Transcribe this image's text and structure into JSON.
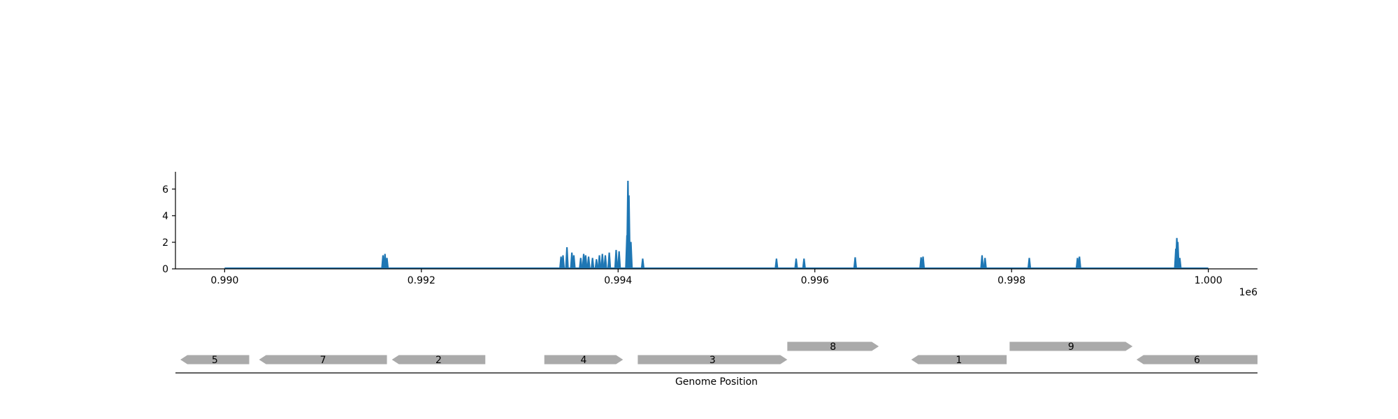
{
  "chart_data": [
    {
      "type": "line",
      "title": "",
      "xlabel": "",
      "ylabel": "",
      "x_offset_label": "1e6",
      "xlim": [
        989500,
        1000500
      ],
      "ylim": [
        0,
        7.3
      ],
      "x_ticks": [
        {
          "value": 990000,
          "label": "0.990"
        },
        {
          "value": 992000,
          "label": "0.992"
        },
        {
          "value": 994000,
          "label": "0.994"
        },
        {
          "value": 996000,
          "label": "0.996"
        },
        {
          "value": 998000,
          "label": "0.998"
        },
        {
          "value": 1000000,
          "label": "1.000"
        }
      ],
      "y_ticks": [
        {
          "value": 0,
          "label": "0"
        },
        {
          "value": 2,
          "label": "2"
        },
        {
          "value": 4,
          "label": "4"
        },
        {
          "value": 6,
          "label": "6"
        }
      ],
      "grid": false,
      "color": "#1f77b4",
      "baseline_x_range": [
        990000,
        1000000
      ],
      "series": [
        {
          "peaks": [
            {
              "x": 991610,
              "y": 1.0
            },
            {
              "x": 991630,
              "y": 1.1
            },
            {
              "x": 991650,
              "y": 0.8
            },
            {
              "x": 993420,
              "y": 0.9
            },
            {
              "x": 993440,
              "y": 1.0
            },
            {
              "x": 993480,
              "y": 1.6
            },
            {
              "x": 993530,
              "y": 1.2
            },
            {
              "x": 993550,
              "y": 1.0
            },
            {
              "x": 993620,
              "y": 0.8
            },
            {
              "x": 993650,
              "y": 1.1
            },
            {
              "x": 993670,
              "y": 1.0
            },
            {
              "x": 993700,
              "y": 0.9
            },
            {
              "x": 993740,
              "y": 0.8
            },
            {
              "x": 993780,
              "y": 0.7
            },
            {
              "x": 993810,
              "y": 1.0
            },
            {
              "x": 993840,
              "y": 1.1
            },
            {
              "x": 993870,
              "y": 1.0
            },
            {
              "x": 993910,
              "y": 1.2
            },
            {
              "x": 993980,
              "y": 1.4
            },
            {
              "x": 994010,
              "y": 1.3
            },
            {
              "x": 994090,
              "y": 2.5
            },
            {
              "x": 994100,
              "y": 6.6
            },
            {
              "x": 994110,
              "y": 5.5
            },
            {
              "x": 994130,
              "y": 2.0
            },
            {
              "x": 994250,
              "y": 0.75
            },
            {
              "x": 995610,
              "y": 0.75
            },
            {
              "x": 995810,
              "y": 0.75
            },
            {
              "x": 995890,
              "y": 0.75
            },
            {
              "x": 996410,
              "y": 0.85
            },
            {
              "x": 997080,
              "y": 0.85
            },
            {
              "x": 997100,
              "y": 0.9
            },
            {
              "x": 997700,
              "y": 1.0
            },
            {
              "x": 997730,
              "y": 0.8
            },
            {
              "x": 998180,
              "y": 0.8
            },
            {
              "x": 998670,
              "y": 0.8
            },
            {
              "x": 998690,
              "y": 0.9
            },
            {
              "x": 999670,
              "y": 1.5
            },
            {
              "x": 999680,
              "y": 2.3
            },
            {
              "x": 999690,
              "y": 2.0
            },
            {
              "x": 999710,
              "y": 0.8
            }
          ]
        }
      ]
    },
    {
      "type": "gene_track",
      "xlabel": "Genome Position",
      "xlim": [
        989500,
        1000500
      ],
      "color": "#aaaaaa",
      "genes": [
        {
          "label": "5",
          "start": 989550,
          "end": 990250,
          "strand": "-",
          "row": 0
        },
        {
          "label": "7",
          "start": 990350,
          "end": 991650,
          "strand": "-",
          "row": 0
        },
        {
          "label": "2",
          "start": 991700,
          "end": 992650,
          "strand": "-",
          "row": 0
        },
        {
          "label": "4",
          "start": 993250,
          "end": 994050,
          "strand": "+",
          "row": 0
        },
        {
          "label": "3",
          "start": 994200,
          "end": 995720,
          "strand": "+",
          "row": 0
        },
        {
          "label": "8",
          "start": 995720,
          "end": 996650,
          "strand": "+",
          "row": 1
        },
        {
          "label": "1",
          "start": 996980,
          "end": 997950,
          "strand": "-",
          "row": 0
        },
        {
          "label": "9",
          "start": 997980,
          "end": 999230,
          "strand": "+",
          "row": 1
        },
        {
          "label": "6",
          "start": 999270,
          "end": 1000500,
          "strand": "-",
          "row": 0
        }
      ]
    }
  ]
}
